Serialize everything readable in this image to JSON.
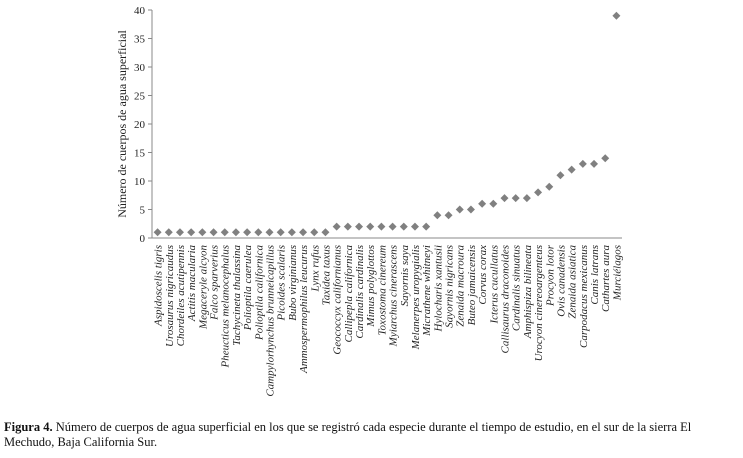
{
  "chart_data": {
    "type": "point",
    "y_label": "Número de cuerpos de agua superficial",
    "categories": [
      "Aspidoscelis tigris",
      "Urosaurus nigricaudus",
      "Chordeiles acutipennis",
      "Actitis macularia",
      "Megaceryle alcyon",
      "Falco sparverius",
      "Pheucticus melanocephalus",
      "Tachycineta thalassina",
      "Polioptila caerulea",
      "Polioptila californica",
      "Campylorhynchus brunneicapillus",
      "Picoides scalaris",
      "Bubo virginianus",
      "Ammospermophilus leucurus",
      "Lynx rufus",
      "Taxidea taxus",
      "Geococcyx californianus",
      "Callipepla californica",
      "Cardinalis cardinalis",
      "Mimus polyglottos",
      "Toxostoma cinereum",
      "Myiarchus cinerascens",
      "Sayornis saya",
      "Melanerpes uropygialis",
      "Micrathene whitneyi",
      "Hylocharis xantusii",
      "Sayornis nigricans",
      "Zenaida macroura",
      "Buteo jamaicensis",
      "Corvus corax",
      "Icterus cucullatus",
      "Callisaurus draconoides",
      "Cardinalis sinuatus",
      "Amphispiza bilineata",
      "Urocyon cinereoargenteus",
      "Procyon lotor",
      "Ovis canadensis",
      "Zenaida asiatica",
      "Carpodacus mexicanus",
      "Canis latrans",
      "Cathartes aura",
      "Murciélagos"
    ],
    "values": [
      1,
      1,
      1,
      1,
      1,
      1,
      1,
      1,
      1,
      1,
      1,
      1,
      1,
      1,
      1,
      1,
      2,
      2,
      2,
      2,
      2,
      2,
      2,
      2,
      2,
      4,
      4,
      5,
      5,
      6,
      6,
      7,
      7,
      7,
      8,
      9,
      11,
      12,
      13,
      13,
      14,
      39
    ],
    "color": "#808080",
    "ylim": [
      0,
      40
    ],
    "yticks": [
      0,
      5,
      10,
      15,
      20,
      25,
      30,
      35,
      40
    ],
    "caption_label": "Figura 4.",
    "caption": "Número de cuerpos de agua superficial en los que se registró cada especie durante el tiempo de estudio, en el sur de la sierra El Mechudo, Baja California Sur."
  }
}
